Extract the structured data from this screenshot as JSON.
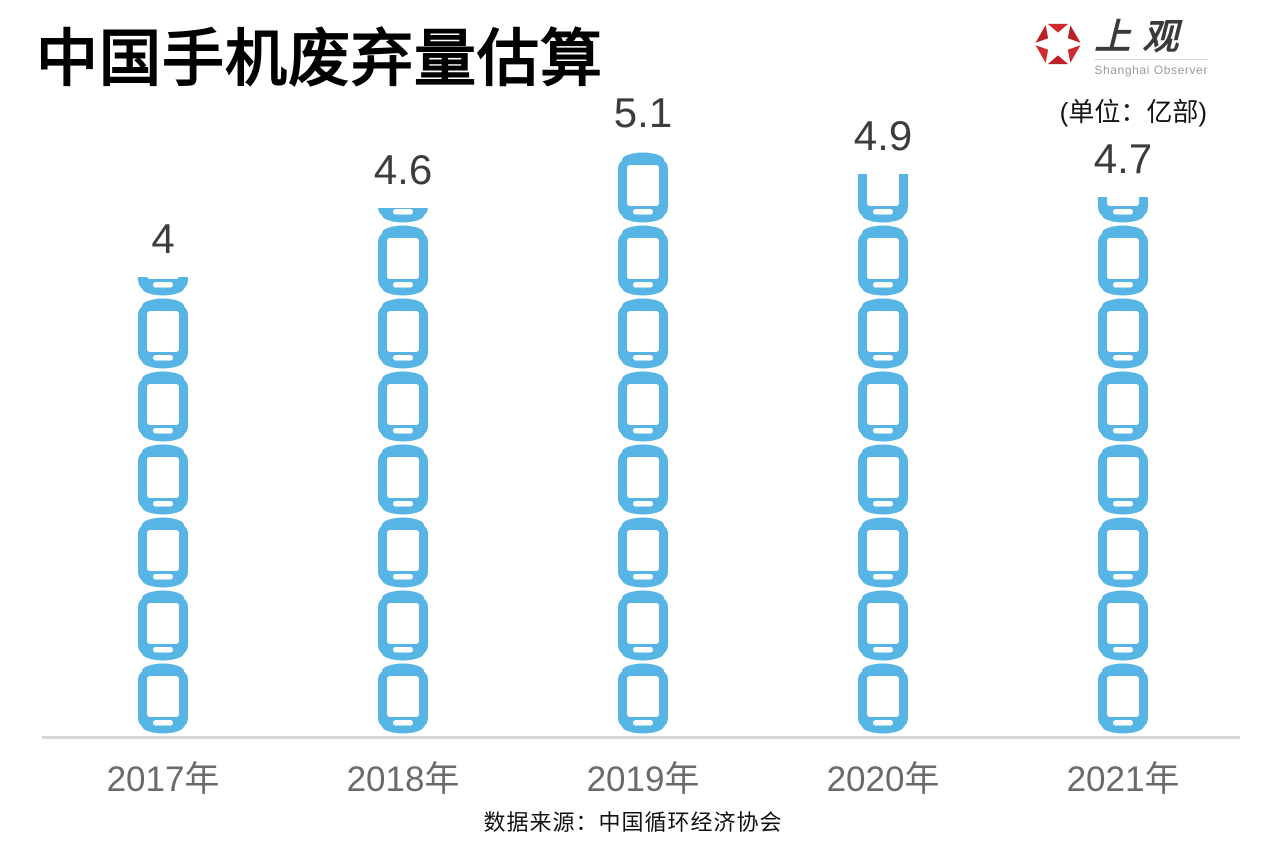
{
  "title": "中国手机废弃量估算",
  "unit_label": "(单位：亿部)",
  "logo": {
    "name": "上观",
    "subtitle": "Shanghai Observer",
    "icon": "aperture-hexagon-icon",
    "color": "#cf2a2e",
    "color_dark": "#ba2026"
  },
  "source": "数据来源：中国循环经济协会",
  "chart_data": {
    "type": "bar",
    "style": "pictogram",
    "pictogram_icon": "smartphone-icon",
    "title": "中国手机废弃量估算",
    "unit": "亿部",
    "categories": [
      "2017年",
      "2018年",
      "2019年",
      "2020年",
      "2021年"
    ],
    "values": [
      4,
      4.6,
      5.1,
      4.9,
      4.7
    ],
    "ylim": [
      0,
      5.5
    ],
    "grid": false,
    "legend": false,
    "value_labels_position": "above-bar",
    "bar_color": "#57b5e5",
    "value_label_color": "#3c3c3c",
    "tick_label_color": "#6b6b6b",
    "axis_color": "#d6d6d6"
  }
}
